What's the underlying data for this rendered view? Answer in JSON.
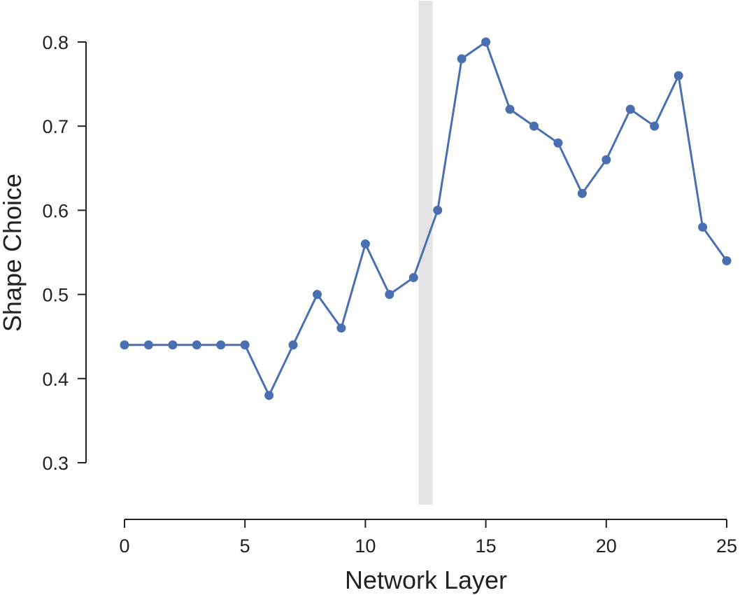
{
  "chart_data": {
    "type": "line",
    "xlabel": "Network Layer",
    "ylabel": "Shape Choice",
    "xlim": [
      0,
      25
    ],
    "ylim": [
      0.3,
      0.8
    ],
    "xticks": [
      0,
      5,
      10,
      15,
      20,
      25
    ],
    "xtick_labels": [
      "0",
      "5",
      "10",
      "15",
      "20",
      "25"
    ],
    "yticks": [
      0.3,
      0.4,
      0.5,
      0.6,
      0.7,
      0.8
    ],
    "ytick_labels": [
      "0.3",
      "0.4",
      "0.5",
      "0.6",
      "0.7",
      "0.8"
    ],
    "grid": false,
    "highlight_band": {
      "x": 12.5,
      "color": "#e3e3e3"
    },
    "series": [
      {
        "color": "#4a6fb0",
        "x": [
          0,
          1,
          2,
          3,
          4,
          5,
          6,
          7,
          8,
          9,
          10,
          11,
          12,
          13,
          14,
          15,
          16,
          17,
          18,
          19,
          20,
          21,
          22,
          23,
          24,
          25
        ],
        "y": [
          0.44,
          0.44,
          0.44,
          0.44,
          0.44,
          0.44,
          0.38,
          0.44,
          0.5,
          0.46,
          0.56,
          0.5,
          0.52,
          0.6,
          0.78,
          0.8,
          0.72,
          0.7,
          0.68,
          0.62,
          0.66,
          0.72,
          0.7,
          0.76,
          0.58,
          0.54
        ]
      }
    ]
  }
}
